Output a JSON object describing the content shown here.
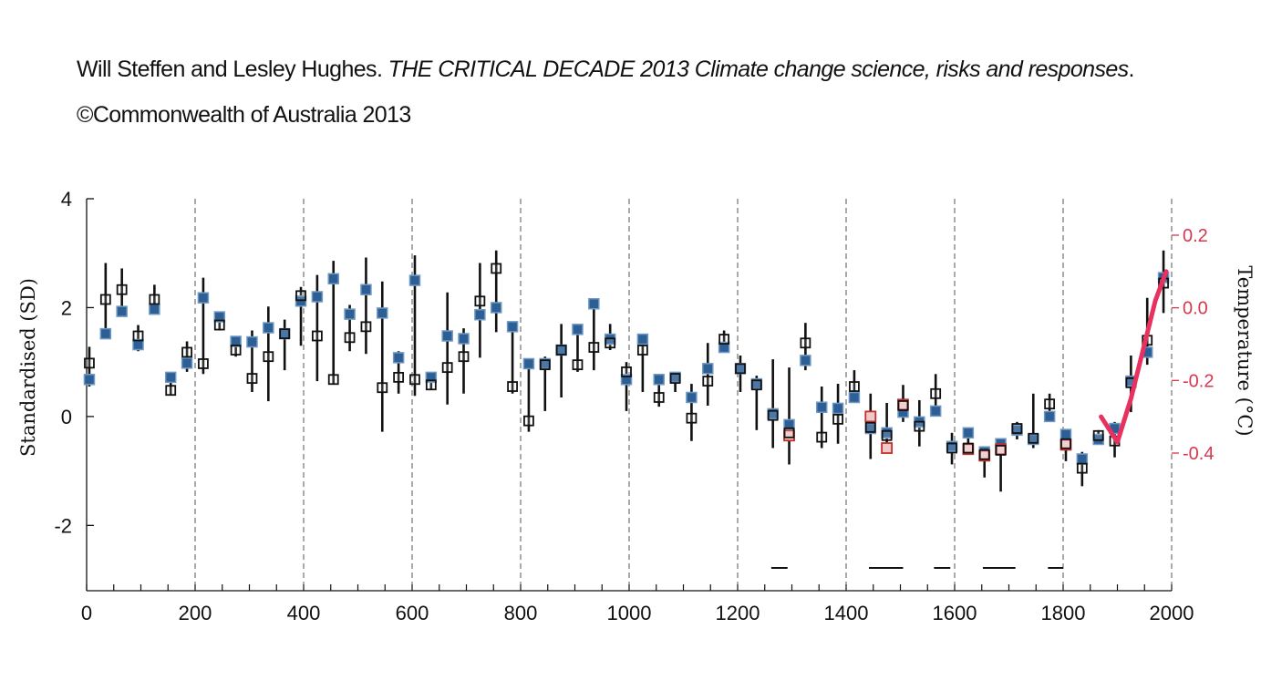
{
  "credit": {
    "authors": "Will Steffen and Lesley Hughes.",
    "publication": "THE CRITICAL DECADE 2013 Climate change science, risks and responses",
    "end": ".",
    "copyright": "©Commonwealth of Australia 2013"
  },
  "chart_data": {
    "type": "scatter",
    "title": "",
    "xlabel": "",
    "ylabel": "Standardised (SD)",
    "y2label": "Temperature (°C)",
    "xlim": [
      0,
      2000
    ],
    "ylim": [
      -3.2,
      4
    ],
    "y2lim": [
      -0.4,
      0.2
    ],
    "x_ticks": [
      0,
      200,
      400,
      600,
      800,
      1000,
      1200,
      1400,
      1600,
      1800,
      2000
    ],
    "y_ticks": [
      -2,
      0,
      2,
      4
    ],
    "y2_ticks": [
      -0.4,
      -0.2,
      0.0,
      0.2
    ],
    "y2_tick_labels": [
      "-0.4",
      "-0.2",
      "0.0",
      "0.2"
    ],
    "x_tick_labels": [
      "0",
      "200",
      "400",
      "600",
      "800",
      "1000",
      "1200",
      "1400",
      "1600",
      "1800",
      "2000"
    ],
    "y_tick_labels": [
      "-2",
      "0",
      "2",
      "4"
    ],
    "dashed_dividers_x": [
      200,
      400,
      600,
      800,
      1000,
      1200,
      1400,
      1600,
      1800,
      2000
    ],
    "grid": false,
    "colors": {
      "filled": "#2d5f95",
      "filled_border": "#6f99c4",
      "open": "#111111",
      "red_open": "#c0302c",
      "red_fill": "#f0c8c8",
      "temperature_line": "#e8315e",
      "axis_right": "#d9364f"
    },
    "series": [
      {
        "marker": "open-square",
        "points": [
          {
            "x": 5,
            "y": 0.98,
            "lo": 0.55,
            "hi": 1.28
          },
          {
            "x": 35,
            "y": 2.15,
            "lo": 1.5,
            "hi": 2.82
          },
          {
            "x": 65,
            "y": 2.33,
            "lo": 1.9,
            "hi": 2.72
          },
          {
            "x": 95,
            "y": 1.48,
            "lo": 1.2,
            "hi": 1.68
          },
          {
            "x": 125,
            "y": 2.15,
            "lo": 1.9,
            "hi": 2.42
          },
          {
            "x": 155,
            "y": 0.48,
            "lo": 0.4,
            "hi": 0.62
          },
          {
            "x": 185,
            "y": 1.18,
            "lo": 0.82,
            "hi": 1.38
          },
          {
            "x": 215,
            "y": 0.97,
            "lo": 0.78,
            "hi": 2.55
          },
          {
            "x": 245,
            "y": 1.68,
            "lo": 1.58,
            "hi": 1.88
          },
          {
            "x": 275,
            "y": 1.22,
            "lo": 1.1,
            "hi": 1.45
          },
          {
            "x": 305,
            "y": 0.7,
            "lo": 0.45,
            "hi": 1.58
          },
          {
            "x": 335,
            "y": 1.1,
            "lo": 0.28,
            "hi": 2.02
          },
          {
            "x": 365,
            "y": 1.52,
            "lo": 0.85,
            "hi": 1.78
          },
          {
            "x": 395,
            "y": 2.22,
            "lo": 1.3,
            "hi": 2.38
          },
          {
            "x": 425,
            "y": 1.48,
            "lo": 0.65,
            "hi": 2.6
          },
          {
            "x": 455,
            "y": 0.68,
            "lo": 0.6,
            "hi": 2.86
          },
          {
            "x": 485,
            "y": 1.45,
            "lo": 1.2,
            "hi": 2.05
          },
          {
            "x": 515,
            "y": 1.65,
            "lo": 1.15,
            "hi": 2.92
          },
          {
            "x": 545,
            "y": 0.53,
            "lo": -0.28,
            "hi": 2.48
          },
          {
            "x": 575,
            "y": 0.72,
            "lo": 0.42,
            "hi": 1.2
          },
          {
            "x": 605,
            "y": 0.68,
            "lo": 0.38,
            "hi": 2.96
          },
          {
            "x": 635,
            "y": 0.58,
            "lo": 0.5,
            "hi": 0.78
          },
          {
            "x": 665,
            "y": 0.9,
            "lo": 0.22,
            "hi": 2.28
          },
          {
            "x": 695,
            "y": 1.1,
            "lo": 0.42,
            "hi": 1.62
          },
          {
            "x": 725,
            "y": 2.12,
            "lo": 1.08,
            "hi": 2.82
          },
          {
            "x": 755,
            "y": 2.72,
            "lo": 1.55,
            "hi": 3.05
          },
          {
            "x": 785,
            "y": 0.55,
            "lo": 0.42,
            "hi": 1.7
          },
          {
            "x": 815,
            "y": -0.08,
            "lo": -0.28,
            "hi": 1.0
          },
          {
            "x": 845,
            "y": 0.95,
            "lo": 0.1,
            "hi": 1.1
          },
          {
            "x": 875,
            "y": 1.22,
            "lo": 0.35,
            "hi": 1.7
          },
          {
            "x": 905,
            "y": 0.95,
            "lo": 0.82,
            "hi": 1.7
          },
          {
            "x": 935,
            "y": 1.27,
            "lo": 0.85,
            "hi": 2.15
          },
          {
            "x": 965,
            "y": 1.35,
            "lo": 1.22,
            "hi": 1.7
          },
          {
            "x": 995,
            "y": 0.82,
            "lo": 0.1,
            "hi": 1.0
          },
          {
            "x": 1025,
            "y": 1.22,
            "lo": 0.45,
            "hi": 1.5
          },
          {
            "x": 1055,
            "y": 0.35,
            "lo": 0.18,
            "hi": 0.78
          },
          {
            "x": 1085,
            "y": 0.7,
            "lo": 0.45,
            "hi": 0.82
          },
          {
            "x": 1115,
            "y": -0.03,
            "lo": -0.45,
            "hi": 0.6
          },
          {
            "x": 1145,
            "y": 0.65,
            "lo": 0.2,
            "hi": 1.35
          },
          {
            "x": 1175,
            "y": 1.42,
            "lo": 1.25,
            "hi": 1.58
          },
          {
            "x": 1205,
            "y": 0.88,
            "lo": 0.45,
            "hi": 1.12
          },
          {
            "x": 1235,
            "y": 0.58,
            "lo": -0.25,
            "hi": 0.75
          },
          {
            "x": 1265,
            "y": 0.02,
            "lo": -0.58,
            "hi": 1.05
          },
          {
            "x": 1295,
            "y": -0.3,
            "lo": -0.88,
            "hi": 0.9
          },
          {
            "x": 1325,
            "y": 1.35,
            "lo": 0.85,
            "hi": 1.72
          },
          {
            "x": 1355,
            "y": -0.38,
            "lo": -0.58,
            "hi": 0.55
          },
          {
            "x": 1385,
            "y": -0.05,
            "lo": -0.5,
            "hi": 0.6
          },
          {
            "x": 1415,
            "y": 0.55,
            "lo": 0.25,
            "hi": 0.85
          },
          {
            "x": 1445,
            "y": -0.2,
            "lo": -0.78,
            "hi": 0.42
          },
          {
            "x": 1475,
            "y": -0.35,
            "lo": -0.62,
            "hi": 0.25
          },
          {
            "x": 1505,
            "y": 0.2,
            "lo": -0.1,
            "hi": 0.58
          },
          {
            "x": 1535,
            "y": -0.18,
            "lo": -0.55,
            "hi": 0.3
          },
          {
            "x": 1565,
            "y": 0.42,
            "lo": 0.15,
            "hi": 0.78
          },
          {
            "x": 1595,
            "y": -0.58,
            "lo": -0.88,
            "hi": -0.3
          },
          {
            "x": 1625,
            "y": -0.58,
            "lo": -0.7,
            "hi": -0.25
          },
          {
            "x": 1655,
            "y": -0.7,
            "lo": -1.12,
            "hi": -0.55
          },
          {
            "x": 1685,
            "y": -0.62,
            "lo": -1.38,
            "hi": -0.45
          },
          {
            "x": 1715,
            "y": -0.22,
            "lo": -0.42,
            "hi": -0.1
          },
          {
            "x": 1745,
            "y": -0.4,
            "lo": -0.58,
            "hi": 0.42
          },
          {
            "x": 1775,
            "y": 0.23,
            "lo": -0.1,
            "hi": 0.42
          },
          {
            "x": 1805,
            "y": -0.5,
            "lo": -0.82,
            "hi": -0.3
          },
          {
            "x": 1835,
            "y": -0.95,
            "lo": -1.28,
            "hi": -0.65
          },
          {
            "x": 1865,
            "y": -0.35,
            "lo": -0.5,
            "hi": -0.25
          },
          {
            "x": 1895,
            "y": -0.45,
            "lo": -0.75,
            "hi": -0.1
          },
          {
            "x": 1925,
            "y": 0.62,
            "lo": 0.08,
            "hi": 1.12
          },
          {
            "x": 1955,
            "y": 1.4,
            "lo": 0.95,
            "hi": 2.18
          },
          {
            "x": 1985,
            "y": 2.45,
            "lo": 1.9,
            "hi": 3.05
          }
        ]
      },
      {
        "marker": "filled-square",
        "points": [
          {
            "x": 5,
            "y": 0.68
          },
          {
            "x": 35,
            "y": 1.52
          },
          {
            "x": 65,
            "y": 1.93
          },
          {
            "x": 95,
            "y": 1.32
          },
          {
            "x": 125,
            "y": 1.97
          },
          {
            "x": 155,
            "y": 0.72
          },
          {
            "x": 185,
            "y": 0.98
          },
          {
            "x": 215,
            "y": 2.18
          },
          {
            "x": 245,
            "y": 1.83
          },
          {
            "x": 275,
            "y": 1.38
          },
          {
            "x": 305,
            "y": 1.37
          },
          {
            "x": 335,
            "y": 1.63
          },
          {
            "x": 365,
            "y": 1.52
          },
          {
            "x": 395,
            "y": 2.12
          },
          {
            "x": 425,
            "y": 2.2
          },
          {
            "x": 455,
            "y": 2.53
          },
          {
            "x": 485,
            "y": 1.88
          },
          {
            "x": 515,
            "y": 2.33
          },
          {
            "x": 545,
            "y": 1.9
          },
          {
            "x": 575,
            "y": 1.08
          },
          {
            "x": 605,
            "y": 2.5
          },
          {
            "x": 635,
            "y": 0.72
          },
          {
            "x": 665,
            "y": 1.48
          },
          {
            "x": 695,
            "y": 1.43
          },
          {
            "x": 725,
            "y": 1.87
          },
          {
            "x": 755,
            "y": 2.0
          },
          {
            "x": 785,
            "y": 1.65
          },
          {
            "x": 815,
            "y": 0.97
          },
          {
            "x": 845,
            "y": 0.97
          },
          {
            "x": 875,
            "y": 1.22
          },
          {
            "x": 905,
            "y": 1.6
          },
          {
            "x": 935,
            "y": 2.07
          },
          {
            "x": 965,
            "y": 1.42
          },
          {
            "x": 995,
            "y": 0.68
          },
          {
            "x": 1025,
            "y": 1.42
          },
          {
            "x": 1055,
            "y": 0.68
          },
          {
            "x": 1085,
            "y": 0.72
          },
          {
            "x": 1115,
            "y": 0.35
          },
          {
            "x": 1145,
            "y": 0.88
          },
          {
            "x": 1175,
            "y": 1.27
          },
          {
            "x": 1205,
            "y": 0.88
          },
          {
            "x": 1235,
            "y": 0.6
          },
          {
            "x": 1265,
            "y": 0.05
          },
          {
            "x": 1295,
            "y": -0.15
          },
          {
            "x": 1325,
            "y": 1.03
          },
          {
            "x": 1355,
            "y": 0.17
          },
          {
            "x": 1385,
            "y": 0.15
          },
          {
            "x": 1415,
            "y": 0.35
          },
          {
            "x": 1445,
            "y": -0.22
          },
          {
            "x": 1475,
            "y": -0.3
          },
          {
            "x": 1505,
            "y": 0.08
          },
          {
            "x": 1535,
            "y": -0.1
          },
          {
            "x": 1565,
            "y": 0.1
          },
          {
            "x": 1595,
            "y": -0.55
          },
          {
            "x": 1625,
            "y": -0.3
          },
          {
            "x": 1655,
            "y": -0.65
          },
          {
            "x": 1685,
            "y": -0.5
          },
          {
            "x": 1715,
            "y": -0.25
          },
          {
            "x": 1745,
            "y": -0.42
          },
          {
            "x": 1775,
            "y": 0.0
          },
          {
            "x": 1805,
            "y": -0.33
          },
          {
            "x": 1835,
            "y": -0.78
          },
          {
            "x": 1865,
            "y": -0.42
          },
          {
            "x": 1895,
            "y": -0.22
          },
          {
            "x": 1925,
            "y": 0.65
          },
          {
            "x": 1955,
            "y": 1.18
          },
          {
            "x": 1985,
            "y": 2.55
          }
        ]
      },
      {
        "marker": "red-open-square",
        "points": [
          {
            "x": 1295,
            "y": -0.35
          },
          {
            "x": 1445,
            "y": 0.0
          },
          {
            "x": 1475,
            "y": -0.58
          },
          {
            "x": 1505,
            "y": 0.22
          },
          {
            "x": 1625,
            "y": -0.6
          },
          {
            "x": 1655,
            "y": -0.72
          },
          {
            "x": 1685,
            "y": -0.6
          },
          {
            "x": 1805,
            "y": -0.52
          }
        ]
      },
      {
        "marker": "line",
        "axis": "right",
        "points": [
          {
            "x": 1870,
            "y": -0.3
          },
          {
            "x": 1900,
            "y": -0.37
          },
          {
            "x": 1925,
            "y": -0.25
          },
          {
            "x": 1950,
            "y": -0.1
          },
          {
            "x": 1970,
            "y": 0.02
          },
          {
            "x": 1990,
            "y": 0.1
          }
        ]
      }
    ],
    "horizontal_bars": [
      {
        "x0": 1262,
        "x1": 1292
      },
      {
        "x0": 1442,
        "x1": 1505
      },
      {
        "x0": 1562,
        "x1": 1592
      },
      {
        "x0": 1652,
        "x1": 1712
      },
      {
        "x0": 1772,
        "x1": 1800
      }
    ]
  }
}
